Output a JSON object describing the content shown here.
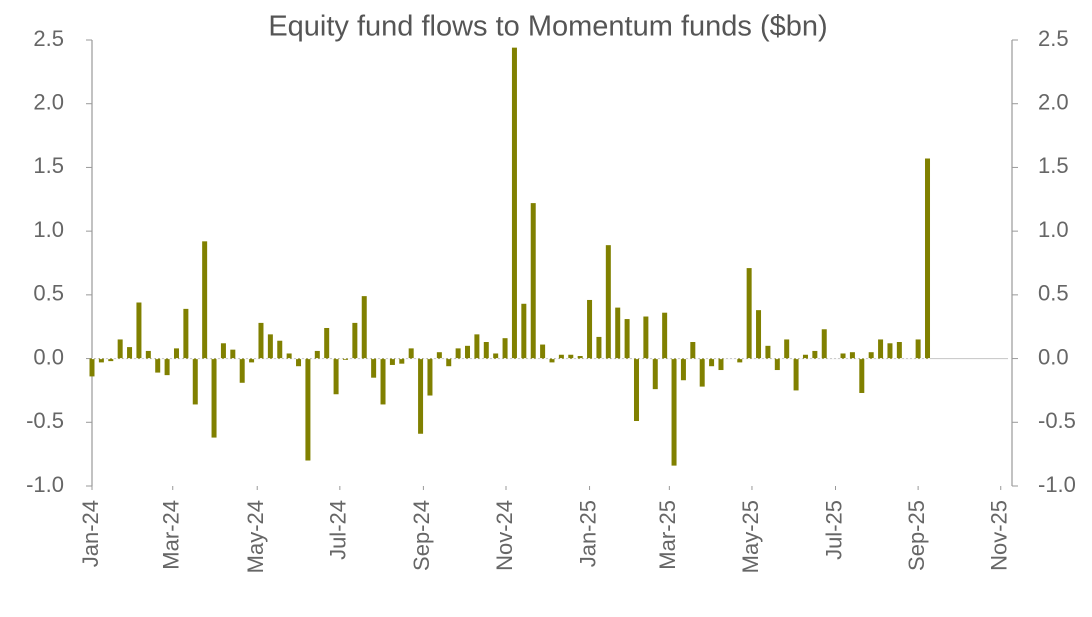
{
  "chart_data": {
    "type": "bar",
    "title": "Equity fund flows to Momentum funds ($bn)",
    "x": [
      0,
      1,
      2,
      3,
      4,
      5,
      6,
      7,
      8,
      9,
      10,
      11,
      12,
      13,
      14,
      15,
      16,
      17,
      18,
      19,
      20,
      21,
      22,
      23,
      24,
      25,
      26,
      27,
      28,
      29,
      30,
      31,
      32,
      33,
      34,
      35,
      36,
      37,
      38,
      39,
      40,
      41,
      42,
      43,
      44,
      45,
      46,
      47,
      48,
      49,
      50,
      51,
      52,
      53,
      54,
      55,
      56,
      57,
      58,
      59,
      60,
      61,
      62,
      63,
      64,
      65,
      66,
      67,
      68,
      69,
      70,
      71,
      72,
      73,
      74,
      75,
      76,
      77,
      78,
      79,
      80,
      81,
      82,
      83,
      84,
      85,
      86,
      87,
      88,
      89
    ],
    "values": [
      -0.14,
      -0.03,
      -0.02,
      0.15,
      0.09,
      0.44,
      0.06,
      -0.11,
      -0.13,
      0.08,
      0.39,
      -0.36,
      0.92,
      -0.62,
      0.12,
      0.07,
      -0.19,
      -0.03,
      0.28,
      0.19,
      0.14,
      0.04,
      -0.06,
      -0.8,
      0.06,
      0.24,
      -0.28,
      -0.01,
      0.28,
      0.49,
      -0.15,
      -0.36,
      -0.05,
      -0.04,
      0.08,
      -0.59,
      -0.29,
      0.05,
      -0.06,
      0.08,
      0.1,
      0.19,
      0.13,
      0.04,
      0.16,
      2.44,
      0.43,
      1.22,
      0.11,
      -0.03,
      0.03,
      0.03,
      0.02,
      0.46,
      0.17,
      0.89,
      0.4,
      0.31,
      -0.49,
      0.33,
      -0.24,
      0.36,
      -0.84,
      -0.17,
      0.13,
      -0.22,
      -0.06,
      -0.09,
      0,
      -0.03,
      0.71,
      0.38,
      0.1,
      -0.09,
      0.15,
      -0.25,
      0.03,
      0.06,
      0.23,
      0,
      0.04,
      0.05,
      -0.27,
      0.05,
      0.15,
      0.12,
      0.13,
      0,
      0.15,
      1.57
    ],
    "color": "#808000",
    "xlim": [
      0,
      98
    ],
    "xticks": [
      {
        "value": 0,
        "label": "Jan-24"
      },
      {
        "value": 8.6,
        "label": "Mar-24"
      },
      {
        "value": 17.6,
        "label": "May-24"
      },
      {
        "value": 26.4,
        "label": "Jul-24"
      },
      {
        "value": 35.3,
        "label": "Sep-24"
      },
      {
        "value": 44.1,
        "label": "Nov-24"
      },
      {
        "value": 53,
        "label": "Jan-25"
      },
      {
        "value": 61.5,
        "label": "Mar-25"
      },
      {
        "value": 70.3,
        "label": "May-25"
      },
      {
        "value": 79.2,
        "label": "Jul-25"
      },
      {
        "value": 88,
        "label": "Sep-25"
      },
      {
        "value": 96.8,
        "label": "Nov-25"
      }
    ],
    "ylim": [
      -1,
      2.5
    ],
    "yticks": [
      {
        "value": -1,
        "label": "-1.0"
      },
      -0.5,
      {
        "value": 0,
        "label": "0.0"
      },
      0.5,
      {
        "value": 1,
        "label": "1.0"
      },
      1.5,
      {
        "value": 2,
        "label": "2.0"
      },
      2.5
    ],
    "y2lim": [
      -1,
      2.5
    ],
    "y2ticks": [
      {
        "value": -1,
        "label": "-1.0"
      },
      -0.5,
      {
        "value": 0,
        "label": "0.0"
      },
      0.5,
      {
        "value": 1,
        "label": "1.0"
      },
      1.5,
      {
        "value": 2,
        "label": "2.0"
      },
      2.5
    ]
  }
}
